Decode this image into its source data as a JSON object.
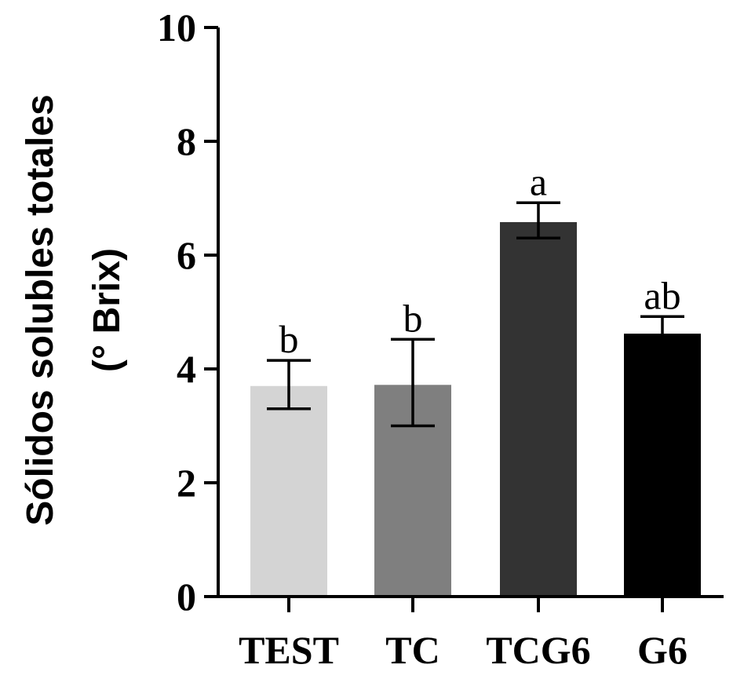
{
  "chart_data": {
    "type": "bar",
    "title": "",
    "xlabel": "",
    "ylabel_line1": "Sólidos solubles totales",
    "ylabel_line2": "(° Brix)",
    "ylim": [
      0,
      10
    ],
    "yticks": [
      0,
      2,
      4,
      6,
      8,
      10
    ],
    "ytick_labels": [
      "0",
      "2",
      "4",
      "6",
      "8",
      "10"
    ],
    "grid": false,
    "categories": [
      "TEST",
      "TC",
      "TCG6",
      "G6"
    ],
    "values": [
      3.7,
      3.72,
      6.58,
      4.62
    ],
    "error_upper": [
      4.15,
      4.52,
      6.92,
      4.92
    ],
    "error_lower": [
      3.3,
      3.0,
      6.3,
      4.62
    ],
    "significance": [
      "b",
      "b",
      "a",
      "ab"
    ],
    "bar_colors": [
      "#d4d4d4",
      "#7f7f7f",
      "#333333",
      "#000000"
    ]
  }
}
